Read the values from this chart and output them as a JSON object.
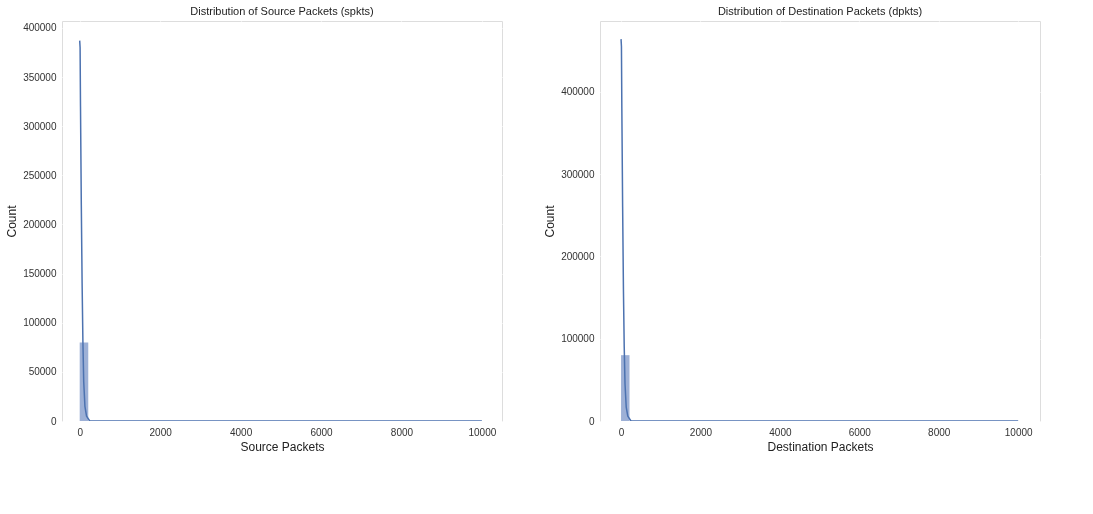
{
  "chart_data": [
    {
      "type": "histogram",
      "title": "Distribution of Source Packets (spkts)",
      "xlabel": "Source Packets",
      "ylabel": "Count",
      "series": [
        {
          "type": "histogram",
          "color": "#9db0d6",
          "bins": [
            0,
            213,
            426,
            639,
            852,
            1065,
            1278,
            1491,
            1704,
            1917,
            2130,
            2343,
            2556,
            2769,
            2982,
            3195,
            3408,
            3621,
            3834,
            4047,
            4260,
            4473,
            4686,
            4899,
            5112,
            5325,
            5538,
            5751,
            5964,
            6177,
            6390,
            6603,
            6816,
            7029,
            7242,
            7455,
            7668,
            7881,
            8094,
            8307,
            8520,
            8733,
            8946,
            9159,
            9372,
            9585,
            9798,
            10011,
            10224,
            10437,
            10650
          ],
          "values": [
            80000,
            0,
            0,
            0,
            0,
            0,
            0,
            0,
            0,
            0,
            0,
            0,
            0,
            0,
            0,
            0,
            0,
            0,
            0,
            0,
            0,
            0,
            0,
            0,
            0,
            0,
            0,
            0,
            0,
            0,
            0,
            0,
            0,
            0,
            0,
            0,
            0,
            0,
            0,
            0,
            0,
            0,
            0,
            0,
            0,
            0,
            0,
            0,
            0,
            0
          ]
        },
        {
          "type": "line",
          "color": "#4c72b0",
          "x": [
            0,
            10,
            20,
            40,
            60,
            80,
            100,
            130,
            170,
            250,
            400,
            1000,
            3000,
            6000,
            10000
          ],
          "values": [
            387000,
            380000,
            320000,
            220000,
            140000,
            80000,
            40000,
            15000,
            5000,
            0,
            0,
            0,
            0,
            0,
            0
          ]
        }
      ],
      "xlim": [
        -440,
        10500
      ],
      "xticks": [
        0,
        2000,
        4000,
        6000,
        8000,
        10000
      ],
      "ylim": [
        0,
        407000
      ],
      "yticks": [
        0,
        50000,
        100000,
        150000,
        200000,
        250000,
        300000,
        350000,
        400000
      ],
      "grid": true
    },
    {
      "type": "histogram",
      "title": "Distribution of Destination Packets (dpkts)",
      "xlabel": "Destination Packets",
      "ylabel": "Count",
      "series": [
        {
          "type": "histogram",
          "color": "#9db0d6",
          "bins": [
            0,
            213,
            426,
            639,
            852,
            1065,
            1278,
            1491,
            1704,
            1917,
            2130,
            2343,
            2556,
            2769,
            2982,
            3195,
            3408,
            3621,
            3834,
            4047,
            4260,
            4473,
            4686,
            4899,
            5112,
            5325,
            5538,
            5751,
            5964,
            6177,
            6390,
            6603,
            6816,
            7029,
            7242,
            7455,
            7668,
            7881,
            8094,
            8307,
            8520,
            8733,
            8946,
            9159,
            9372,
            9585,
            9798,
            10011,
            10224,
            10437,
            10650
          ],
          "values": [
            80000,
            0,
            0,
            0,
            0,
            0,
            0,
            0,
            0,
            0,
            0,
            0,
            0,
            0,
            0,
            0,
            0,
            0,
            0,
            0,
            0,
            0,
            0,
            0,
            0,
            0,
            0,
            0,
            0,
            0,
            0,
            0,
            0,
            0,
            0,
            0,
            0,
            0,
            0,
            0,
            0,
            0,
            0,
            0,
            0,
            0,
            0,
            0,
            0,
            0
          ]
        },
        {
          "type": "line",
          "color": "#4c72b0",
          "x": [
            0,
            10,
            20,
            40,
            60,
            80,
            100,
            130,
            170,
            250,
            400,
            1000,
            3000,
            6000,
            10000
          ],
          "values": [
            464000,
            455000,
            380000,
            260000,
            160000,
            90000,
            45000,
            17000,
            6000,
            0,
            0,
            0,
            0,
            0,
            0
          ]
        }
      ],
      "xlim": [
        -530,
        10550
      ],
      "xticks": [
        0,
        2000,
        4000,
        6000,
        8000,
        10000
      ],
      "ylim": [
        0,
        486000
      ],
      "yticks": [
        0,
        100000,
        200000,
        300000,
        400000
      ],
      "grid": true
    }
  ]
}
